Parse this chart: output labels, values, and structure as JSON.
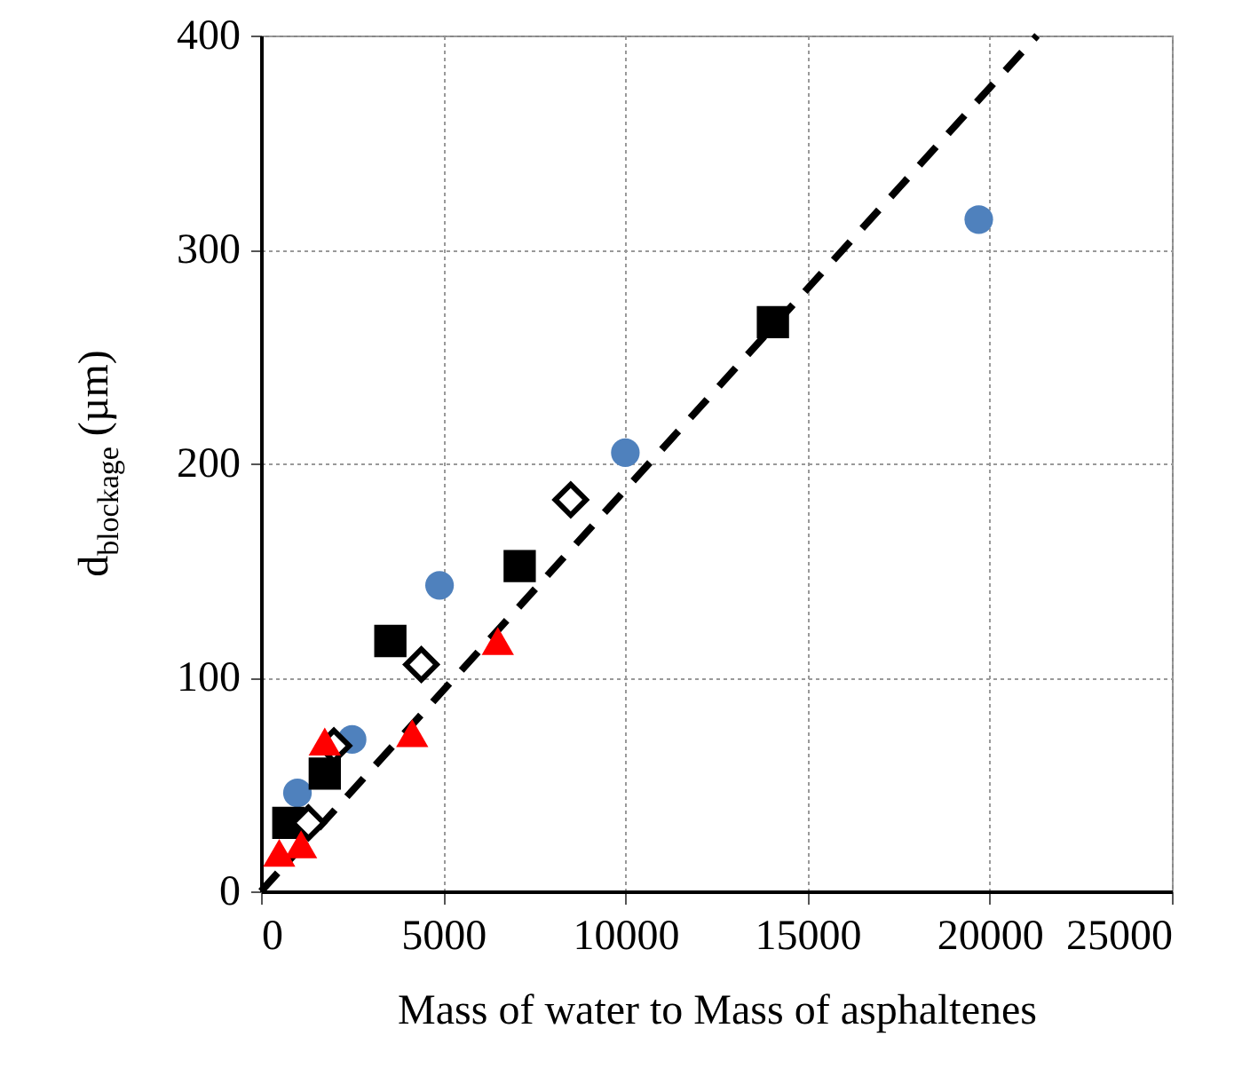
{
  "chart_data": {
    "type": "scatter",
    "xlabel": "Mass of water to Mass of asphaltenes",
    "ylabel": "d$_{blockage}$ (µm)",
    "xlim": [
      0,
      25000
    ],
    "xticks": [
      0,
      5000,
      10000,
      15000,
      20000,
      25000
    ],
    "ylim": [
      0,
      400
    ],
    "yticks": [
      0,
      100,
      200,
      300,
      400
    ],
    "grid": true,
    "series": [
      {
        "type": "line",
        "color": "#000000",
        "line_style": "dashed",
        "marker": "none",
        "x": [
          0,
          21300
        ],
        "values": [
          0,
          400
        ]
      },
      {
        "color": "#4f81bd",
        "marker": "circle",
        "x": [
          1000,
          2500,
          4900,
          10000,
          19700
        ],
        "values": [
          46,
          71,
          143,
          205,
          314
        ]
      },
      {
        "color": "#000000",
        "marker": "square",
        "x": [
          750,
          1750,
          3550,
          7100,
          14050
        ],
        "values": [
          32,
          55,
          117,
          152,
          266
        ]
      },
      {
        "color": "#000000",
        "marker": "diamond",
        "x": [
          1300,
          2000,
          4400,
          8500
        ],
        "values": [
          32,
          68,
          106,
          183
        ]
      },
      {
        "color": "#ff0000",
        "marker": "triangle",
        "x": [
          500,
          1100,
          1750,
          4150,
          6500
        ],
        "values": [
          18,
          22,
          70,
          74,
          117
        ]
      }
    ]
  }
}
